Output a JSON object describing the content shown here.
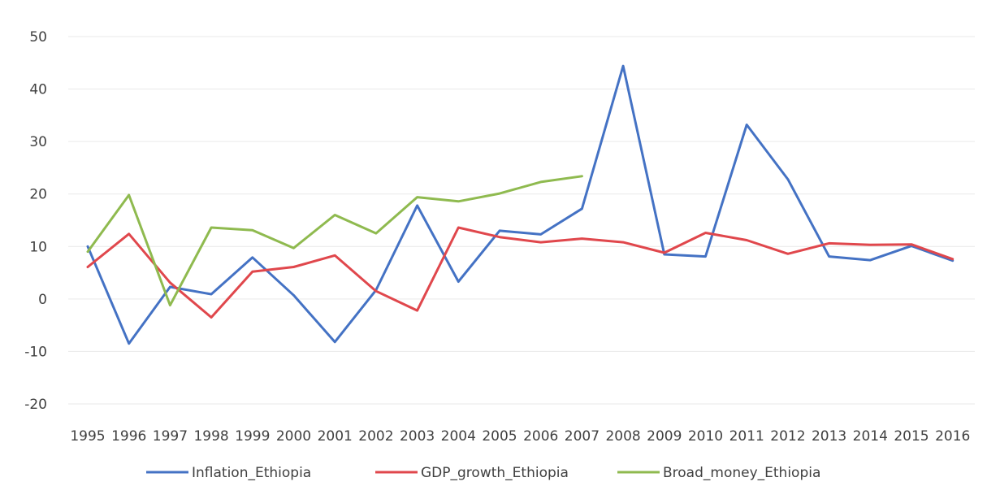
{
  "chart_data": {
    "type": "line",
    "title": "",
    "xlabel": "",
    "ylabel": "",
    "ylim": [
      -20,
      50
    ],
    "yticks": [
      -20,
      -10,
      0,
      10,
      20,
      30,
      40,
      50
    ],
    "grid": true,
    "legend_position": "bottom",
    "categories": [
      "1995",
      "1996",
      "1997",
      "1998",
      "1999",
      "2000",
      "2001",
      "2002",
      "2003",
      "2004",
      "2005",
      "2006",
      "2007",
      "2008",
      "2009",
      "2010",
      "2011",
      "2012",
      "2013",
      "2014",
      "2015",
      "2016"
    ],
    "series": [
      {
        "name": "Inflation_Ethiopia",
        "color": "#4472c4",
        "values": [
          10,
          -8.5,
          2.3,
          0.9,
          7.9,
          0.7,
          -8.2,
          1.7,
          17.8,
          3.3,
          13,
          12.3,
          17.2,
          44.4,
          8.5,
          8.1,
          33.2,
          22.8,
          8.1,
          7.4,
          10.1,
          7.3
        ]
      },
      {
        "name": "GDP_growth_Ethiopia",
        "color": "#e0474c",
        "values": [
          6.1,
          12.4,
          3.1,
          -3.5,
          5.2,
          6.1,
          8.3,
          1.5,
          -2.2,
          13.6,
          11.8,
          10.8,
          11.5,
          10.8,
          8.8,
          12.6,
          11.2,
          8.6,
          10.6,
          10.3,
          10.4,
          7.6
        ]
      },
      {
        "name": "Broad_money_Ethiopia",
        "color": "#8fba4f",
        "values": [
          9,
          19.8,
          -1.2,
          13.6,
          13.1,
          9.7,
          16,
          12.5,
          19.4,
          18.6,
          20.1,
          22.3,
          23.4,
          null,
          null,
          null,
          null,
          null,
          null,
          null,
          null,
          null
        ]
      }
    ]
  }
}
